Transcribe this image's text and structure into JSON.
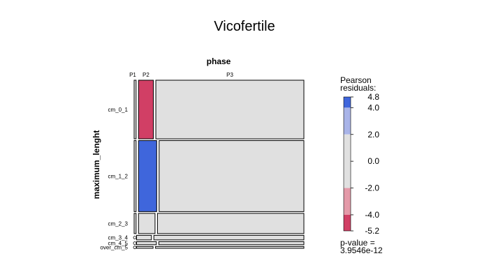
{
  "chart_data": {
    "type": "mosaic",
    "title": "Vicofertile",
    "column_variable": "phase",
    "row_variable": "maximum_lenght",
    "columns": [
      "P1",
      "P2",
      "P3"
    ],
    "rows": [
      "cm_0_1",
      "cm_1_2",
      "cm_2_3",
      "cm_3_4",
      "cm_4_5",
      "over_cm_5"
    ],
    "row_proportions": [
      0.284,
      0.344,
      0.098,
      0.022,
      0.015,
      0.009
    ],
    "cells": [
      {
        "row": "cm_0_1",
        "column": "P1",
        "share": 0.012,
        "residual": 0.0
      },
      {
        "row": "cm_0_1",
        "column": "P2",
        "share": 0.09,
        "residual": -4.5
      },
      {
        "row": "cm_0_1",
        "column": "P3",
        "share": 0.898,
        "residual": 0.5
      },
      {
        "row": "cm_1_2",
        "column": "P1",
        "share": 0.012,
        "residual": 0.0
      },
      {
        "row": "cm_1_2",
        "column": "P2",
        "share": 0.11,
        "residual": 4.6
      },
      {
        "row": "cm_1_2",
        "column": "P3",
        "share": 0.878,
        "residual": -1.0
      },
      {
        "row": "cm_2_3",
        "column": "P1",
        "share": 0.012,
        "residual": 0.0
      },
      {
        "row": "cm_2_3",
        "column": "P2",
        "share": 0.1,
        "residual": 0.8
      },
      {
        "row": "cm_2_3",
        "column": "P3",
        "share": 0.888,
        "residual": -0.3
      },
      {
        "row": "cm_3_4",
        "column": "P1",
        "share": 0.0,
        "residual": 0.0
      },
      {
        "row": "cm_3_4",
        "column": "P2",
        "share": 0.09,
        "residual": 0.5
      },
      {
        "row": "cm_3_4",
        "column": "P3",
        "share": 0.91,
        "residual": -0.1
      },
      {
        "row": "cm_4_5",
        "column": "P1",
        "share": 0.0,
        "residual": 0.0
      },
      {
        "row": "cm_4_5",
        "column": "P2",
        "share": 0.12,
        "residual": 0.5
      },
      {
        "row": "cm_4_5",
        "column": "P3",
        "share": 0.88,
        "residual": -0.1
      },
      {
        "row": "over_cm_5",
        "column": "P1",
        "share": 0.0,
        "residual": 0.0
      },
      {
        "row": "over_cm_5",
        "column": "P2",
        "share": 0.1,
        "residual": 0.3
      },
      {
        "row": "over_cm_5",
        "column": "P3",
        "share": 0.9,
        "residual": -0.1
      }
    ],
    "legend": {
      "title_line1": "Pearson",
      "title_line2": "residuals:",
      "ticks": [
        4.8,
        4.0,
        2.0,
        0.0,
        -2.0,
        -4.0,
        -5.2
      ],
      "tick_labels": [
        "4.8",
        "4.0",
        "2.0",
        "0.0",
        "-2.0",
        "-4.0",
        "-5.2"
      ],
      "bands": [
        {
          "from": 4.0,
          "to": 4.8,
          "color": "#3f66dc"
        },
        {
          "from": 2.0,
          "to": 4.0,
          "color": "#a9b4e8"
        },
        {
          "from": -2.0,
          "to": 2.0,
          "color": "#e0e0e0"
        },
        {
          "from": -4.0,
          "to": -2.0,
          "color": "#e49aa9"
        },
        {
          "from": -5.2,
          "to": -4.0,
          "color": "#d13f65"
        }
      ],
      "range": [
        -5.2,
        4.8
      ],
      "pvalue_line1": "p-value =",
      "pvalue_line2": "3.9546e-12"
    },
    "colors": {
      "strong_positive": "#4a69dc",
      "strong_negative": "#cd4266",
      "neutral": "#e2e2e2"
    }
  }
}
